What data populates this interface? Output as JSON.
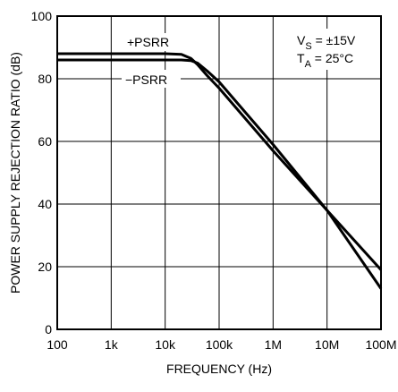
{
  "chart_data": {
    "type": "line",
    "xlabel": "FREQUENCY (Hz)",
    "ylabel": "POWER SUPPLY REJECTION RATIO (dB)",
    "x_scale": "log",
    "xlim": [
      100,
      100000000
    ],
    "ylim": [
      0,
      100
    ],
    "grid": true,
    "x_ticks": [
      {
        "value": 100,
        "label": "100"
      },
      {
        "value": 1000,
        "label": "1k"
      },
      {
        "value": 10000,
        "label": "10k"
      },
      {
        "value": 100000,
        "label": "100k"
      },
      {
        "value": 1000000,
        "label": "1M"
      },
      {
        "value": 10000000,
        "label": "10M"
      },
      {
        "value": 100000000,
        "label": "100M"
      }
    ],
    "y_ticks": [
      {
        "value": 0,
        "label": "0"
      },
      {
        "value": 20,
        "label": "20"
      },
      {
        "value": 40,
        "label": "40"
      },
      {
        "value": 60,
        "label": "60"
      },
      {
        "value": 80,
        "label": "80"
      },
      {
        "value": 100,
        "label": "100"
      }
    ],
    "series": [
      {
        "name": "+PSRR",
        "color": "#000000",
        "points": [
          [
            100,
            88
          ],
          [
            1000,
            88
          ],
          [
            10000,
            88
          ],
          [
            20000,
            87.8
          ],
          [
            30000,
            86.5
          ],
          [
            40000,
            84.5
          ],
          [
            60000,
            81
          ],
          [
            100000,
            77
          ],
          [
            1000000,
            57
          ],
          [
            10000000,
            38
          ],
          [
            100000000,
            19
          ]
        ]
      },
      {
        "name": "−PSRR",
        "color": "#000000",
        "points": [
          [
            100,
            86
          ],
          [
            1000,
            86
          ],
          [
            10000,
            86
          ],
          [
            20000,
            86
          ],
          [
            30000,
            85.8
          ],
          [
            40000,
            85
          ],
          [
            60000,
            82.5
          ],
          [
            100000,
            79
          ],
          [
            1000000,
            59
          ],
          [
            10000000,
            38
          ],
          [
            100000000,
            13
          ]
        ]
      }
    ],
    "annotations": {
      "vs_main": "V",
      "vs_sub": "S",
      "vs_rest": " = ±15V",
      "ta_main": "T",
      "ta_sub": "A",
      "ta_rest": " = 25°C"
    }
  }
}
